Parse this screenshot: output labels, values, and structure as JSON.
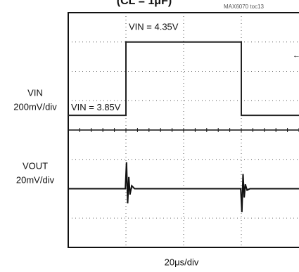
{
  "chart_data": {
    "type": "line",
    "title": "(CL = 1μF)",
    "note": "MAX6070 toc13",
    "x_label": "20μs/div",
    "xlim": [
      0,
      80
    ],
    "ylim": [
      2.95,
      4.55
    ],
    "y2lim": [
      -40,
      120
    ],
    "series": [
      {
        "name": "VIN",
        "scale_label": "200mV/div",
        "color": "#222222",
        "x": [
          0,
          20,
          20,
          60,
          60,
          80
        ],
        "values": [
          3.85,
          3.85,
          4.35,
          4.35,
          3.85,
          3.85
        ]
      },
      {
        "name": "VOUT",
        "scale_label": "20mV/div",
        "color": "#111111",
        "axis": "y2",
        "x": [
          0,
          19.8,
          20.2,
          20.6,
          21,
          21.4,
          22,
          23,
          59.8,
          60.2,
          60.6,
          61,
          61.4,
          62,
          63,
          80
        ],
        "values": [
          0,
          0,
          18,
          -10,
          8,
          -4,
          2,
          0,
          0,
          -16,
          10,
          -6,
          3,
          -1,
          0,
          0
        ]
      }
    ],
    "annotations": [
      {
        "text": "VIN = 4.35V",
        "x": 20,
        "y": 4.45
      },
      {
        "text": "VIN = 3.85V",
        "x": 0,
        "y": 3.9
      }
    ]
  }
}
